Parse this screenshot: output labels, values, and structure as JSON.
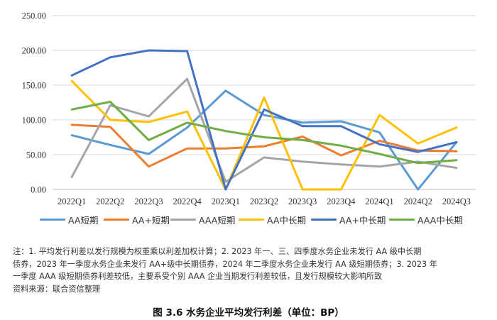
{
  "chart_data": {
    "type": "line",
    "title": "图 3.6   水务企业平均发行利差（单位：BP）",
    "xlabel": "",
    "ylabel": "",
    "ylim": [
      0,
      250
    ],
    "yticks": [
      "0.00",
      "50.00",
      "100.00",
      "150.00",
      "200.00",
      "250.00"
    ],
    "categories": [
      "2022Q1",
      "2022Q2",
      "2022Q3",
      "2022Q4",
      "2023Q1",
      "2023Q2",
      "2023Q3",
      "2023Q4",
      "2024Q1",
      "2024Q2",
      "2024Q3"
    ],
    "grid": true,
    "legend_position": "bottom",
    "series": [
      {
        "name": "AA短期",
        "color": "#5B9BD5",
        "values": [
          78,
          64,
          51,
          89,
          142,
          107,
          96,
          98,
          82,
          0,
          68
        ]
      },
      {
        "name": "AA+短期",
        "color": "#ED7D31",
        "values": [
          93,
          90,
          33,
          59,
          59,
          62,
          76,
          49,
          70,
          56,
          55
        ]
      },
      {
        "name": "AAA短期",
        "color": "#A5A5A5",
        "values": [
          18,
          121,
          105,
          159,
          11,
          46,
          40,
          36,
          33,
          40,
          31
        ]
      },
      {
        "name": "AA中长期",
        "color": "#FFC000",
        "values": [
          156,
          100,
          97,
          112,
          0,
          132,
          0,
          0,
          107,
          66,
          89
        ]
      },
      {
        "name": "AA+中长期",
        "color": "#4472C4",
        "values": [
          164,
          190,
          200,
          199,
          0,
          115,
          91,
          91,
          65,
          54,
          68
        ]
      },
      {
        "name": "AAA中长期",
        "color": "#70AD47",
        "values": [
          115,
          126,
          71,
          96,
          84,
          75,
          71,
          63,
          51,
          38,
          42
        ]
      }
    ]
  },
  "notes": [
    "注：1. 平均发行利差以发行规模为权重乘以利差加权计算；2. 2023 年一、三、四季度水务企业未发行 AA 级中长期",
    "债券，2023 年一季度水务企业未发行 AA+级中长期债券，2024 年二季度水务企业未发行 AA 级短期债券；3. 2023 年",
    "一季度 AAA 级短期债券利差较低，主要系受个别 AAA 企业当期发行利差较低，且发行规模较大影响所致",
    "资料来源：联合资信整理"
  ]
}
